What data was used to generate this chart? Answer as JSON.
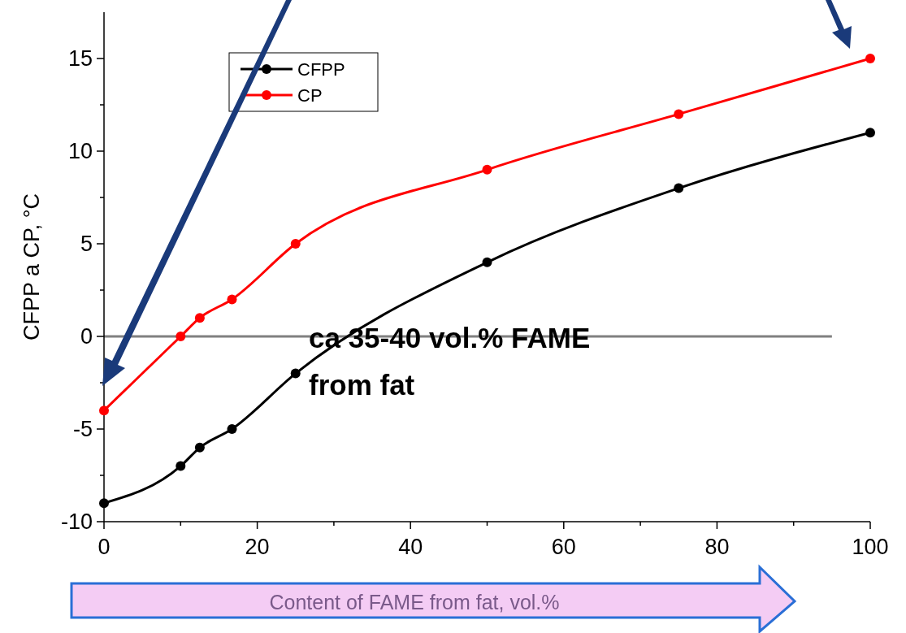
{
  "chart_data": {
    "type": "line",
    "xlabel": "Content of FAME from fat, vol.%",
    "ylabel": "CFPP a CP, °C",
    "annotations": [
      "ca 35-40 vol.% FAME from fat"
    ],
    "x": [
      0,
      10,
      12.5,
      16.7,
      25,
      50,
      75,
      100
    ],
    "series": [
      {
        "name": "CFPP",
        "color": "#000000",
        "values": [
          -9,
          -7,
          -6,
          -5,
          -2,
          4,
          8,
          11
        ]
      },
      {
        "name": "CP",
        "color": "#ff0000",
        "values": [
          -4,
          0,
          1,
          2,
          5,
          9,
          12,
          15
        ]
      }
    ],
    "xlim": [
      0,
      100
    ],
    "ylim": [
      -10,
      17.5
    ],
    "xticks": [
      0,
      {
        "value": 10,
        "label": null
      },
      20,
      {
        "value": 30,
        "label": null
      },
      40,
      {
        "value": 50,
        "label": null
      },
      60,
      {
        "value": 70,
        "label": null
      },
      80,
      {
        "value": 90,
        "label": null
      },
      100
    ],
    "yticks": [
      -10,
      {
        "value": -7.5,
        "label": null
      },
      -5,
      {
        "value": -2.5,
        "label": null
      },
      0,
      {
        "value": 2.5,
        "label": null
      },
      5,
      {
        "value": 7.5,
        "label": null
      },
      10,
      {
        "value": 12.5,
        "label": null
      },
      15
    ],
    "ref_lines": [
      {
        "axis": "y",
        "value": 0,
        "color": "#808080"
      }
    ],
    "legend": "top left",
    "marker": "circle",
    "line_style": "solid",
    "grid": false
  }
}
